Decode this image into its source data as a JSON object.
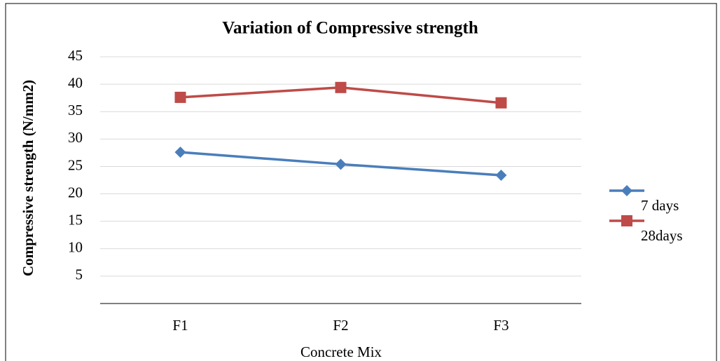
{
  "chart_data": {
    "type": "line",
    "title": "Variation of Compressive strength",
    "x_label": "Concrete Mix",
    "y_label": "Compressive strength (N/mm2)",
    "categories": [
      "F1",
      "F2",
      "F3"
    ],
    "series": [
      {
        "name": "7 days",
        "color": "#4a7ebb",
        "marker": "diamond",
        "values": [
          27.6,
          25.4,
          23.4
        ]
      },
      {
        "name": "28days",
        "color": "#be4b48",
        "marker": "square",
        "values": [
          37.6,
          39.4,
          36.6
        ]
      }
    ],
    "ylim": [
      0,
      45
    ],
    "yticks": [
      5,
      10,
      15,
      20,
      25,
      30,
      35,
      40,
      45
    ],
    "grid": true,
    "legend": "right"
  }
}
